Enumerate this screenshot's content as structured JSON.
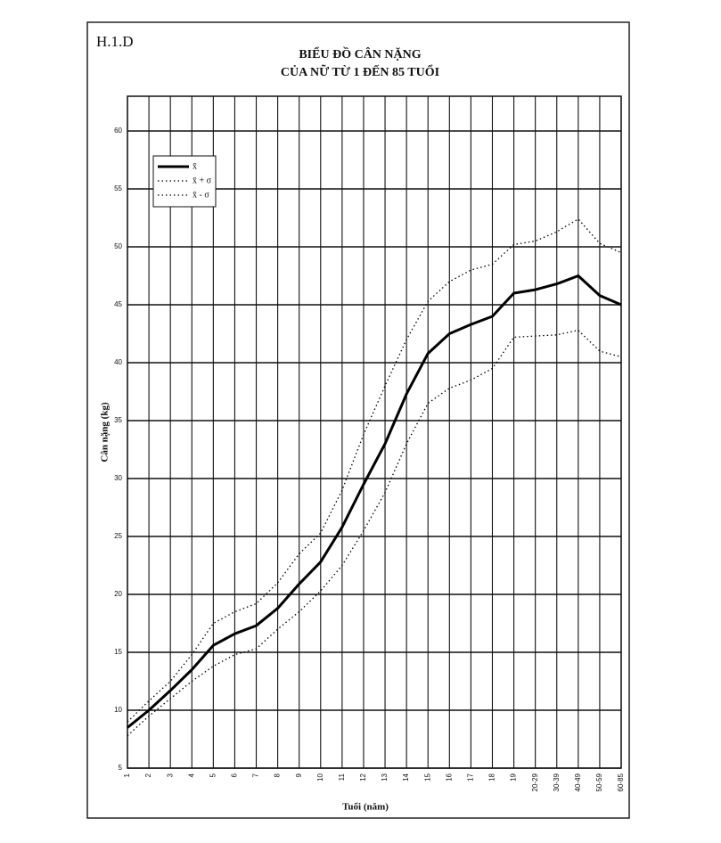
{
  "label": "H.1.D",
  "chart_data": {
    "type": "line",
    "title": "BIỂU ĐỒ CÂN NẶNG",
    "subtitle": "CỦA NỮ TỪ 1 ĐẾN 85 TUỔI",
    "x_label": "Tuổi (năm)",
    "y_label": "Cân nặng (kg)",
    "categories": [
      "1",
      "2",
      "3",
      "4",
      "5",
      "6",
      "7",
      "8",
      "9",
      "10",
      "11",
      "12",
      "13",
      "14",
      "15",
      "16",
      "17",
      "18",
      "19",
      "20-29",
      "30-39",
      "40-49",
      "50-59",
      "60-85"
    ],
    "series": [
      {
        "name": "x̄",
        "color": "#000000",
        "style": "solid",
        "values": [
          8.5,
          10,
          11.7,
          13.5,
          15.6,
          16.6,
          17.3,
          18.8,
          20.9,
          22.8,
          25.8,
          29.5,
          33,
          37.3,
          40.8,
          42.5,
          43.3,
          44,
          46,
          46.3,
          46.8,
          47.5,
          45.8,
          45
        ]
      },
      {
        "name": "x̄ + σ",
        "color": "#000000",
        "style": "dotted",
        "values": [
          9,
          10.8,
          12.5,
          14.8,
          17.5,
          18.5,
          19.2,
          21,
          23.5,
          25.3,
          29,
          33.8,
          38,
          42,
          45.3,
          47,
          48,
          48.5,
          50.2,
          50.5,
          51.3,
          52.4,
          50.3,
          49.5
        ]
      },
      {
        "name": "x̄ - σ",
        "color": "#000000",
        "style": "dotted",
        "values": [
          7.8,
          9.5,
          11,
          12.5,
          13.8,
          14.8,
          15.3,
          17,
          18.5,
          20.3,
          22.5,
          25.5,
          28.8,
          33,
          36.5,
          37.8,
          38.5,
          39.5,
          42.2,
          42.3,
          42.4,
          42.8,
          41,
          40.5
        ]
      }
    ],
    "ylim": [
      5,
      63
    ],
    "yticks": [
      5,
      10,
      15,
      20,
      25,
      30,
      35,
      40,
      45,
      50,
      55,
      60
    ],
    "grid": true,
    "legend": "upper left"
  }
}
